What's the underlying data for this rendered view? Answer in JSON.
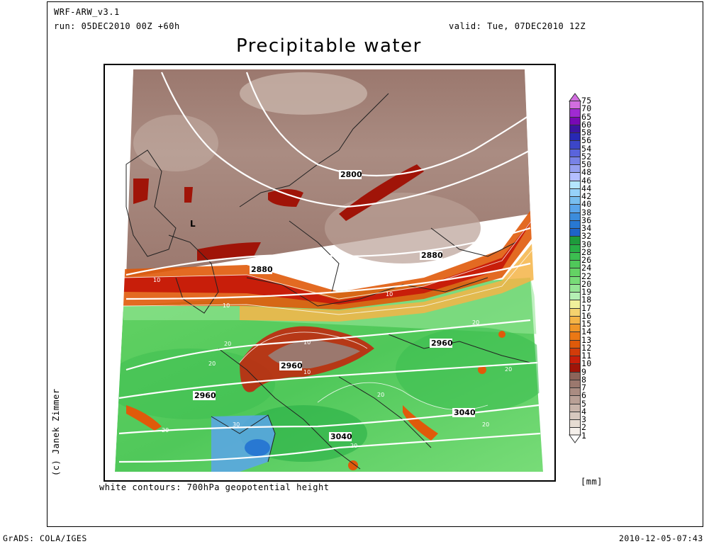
{
  "header": {
    "model": "WRF-ARW_v3.1",
    "run": "run: 05DEC2010 00Z +60h",
    "valid": "valid: Tue, 07DEC2010 12Z",
    "title": "Precipitable water"
  },
  "footer": {
    "left": "GrADS: COLA/IGES",
    "right": "2010-12-05-07:43",
    "note": "white contours: 700hPa geopotential height",
    "credit": "(c) Janek Zimmer"
  },
  "legend": {
    "unit": "[mm]",
    "levels": [
      "75",
      "70",
      "65",
      "60",
      "58",
      "56",
      "54",
      "52",
      "50",
      "48",
      "46",
      "44",
      "42",
      "40",
      "38",
      "36",
      "34",
      "32",
      "30",
      "28",
      "26",
      "24",
      "22",
      "20",
      "19",
      "18",
      "17",
      "16",
      "15",
      "14",
      "13",
      "12",
      "11",
      "10",
      "9",
      "8",
      "7",
      "6",
      "5",
      "4",
      "3",
      "2",
      "1"
    ],
    "colors": [
      "#d26ee0",
      "#a02ad2",
      "#7808b4",
      "#3c14a0",
      "#2828b4",
      "#3c46c8",
      "#5a64dc",
      "#7882e6",
      "#96a0f0",
      "#b4beff",
      "#b4e6ff",
      "#96d2fa",
      "#78bef0",
      "#5aa5eb",
      "#3c8cdc",
      "#2878d2",
      "#1e64c8",
      "#1e9b3c",
      "#28af46",
      "#3cbe50",
      "#50c85a",
      "#64d264",
      "#78dc78",
      "#96e696",
      "#b4f0b4",
      "#f0f09b",
      "#f5d26e",
      "#f5b446",
      "#f09628",
      "#eb7814",
      "#e05a0a",
      "#d23c0a",
      "#c81e0a",
      "#a01408",
      "#8c645a",
      "#9b786e",
      "#aa8c82",
      "#b9a096",
      "#c8b4aa",
      "#d7c8be",
      "#e6dcd2",
      "#f5f0eb"
    ]
  },
  "map": {
    "contour_labels": [
      "2800",
      "2880",
      "2880",
      "2960",
      "2960",
      "2960",
      "3040",
      "3040"
    ],
    "pw_labels": [
      "10",
      "10",
      "10",
      "10",
      "10",
      "20",
      "20",
      "20",
      "20",
      "20",
      "20",
      "20",
      "20",
      "30"
    ],
    "low_marker": "L"
  }
}
